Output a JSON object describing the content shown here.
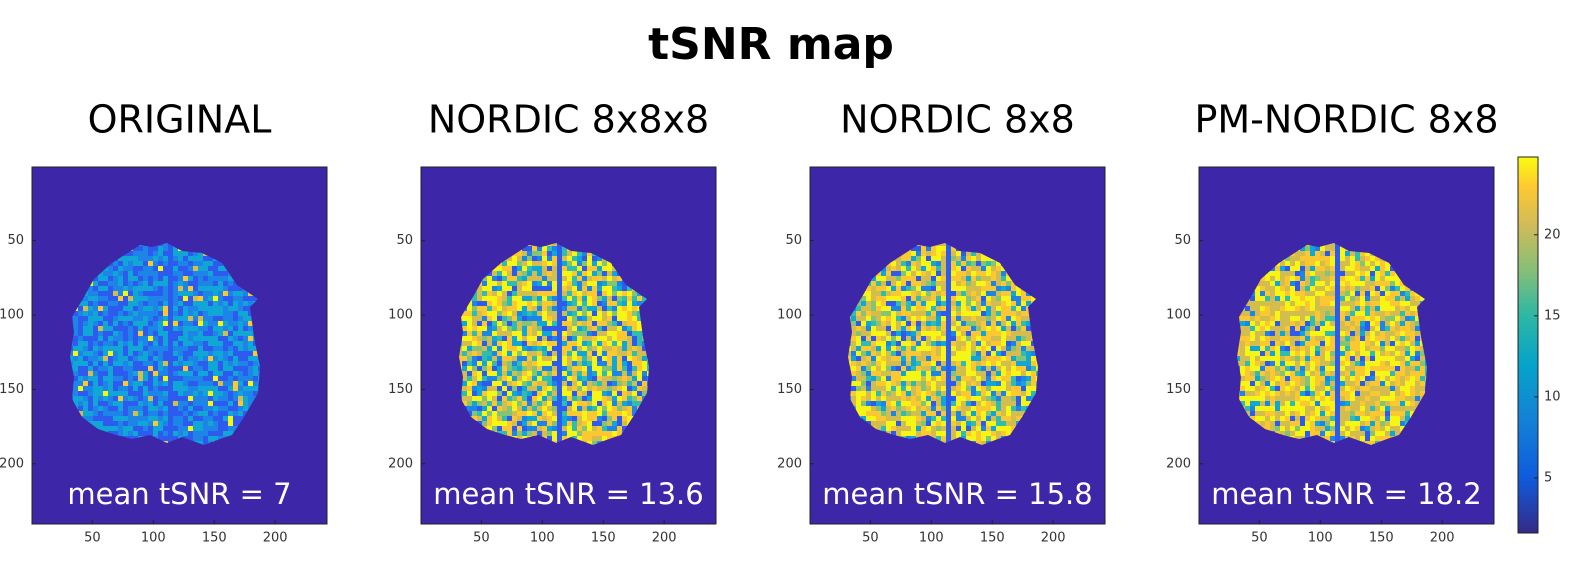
{
  "title": "tSNR map",
  "chart_data": [
    {
      "type": "image",
      "title": "ORIGINAL",
      "annotation": "mean tSNR = 7",
      "xlim": [
        0.5,
        242.5
      ],
      "ylim": [
        0.5,
        240.5
      ],
      "xticks": [
        50,
        100,
        150,
        200
      ],
      "yticks": [
        50,
        100,
        150,
        200
      ]
    },
    {
      "type": "image",
      "title": "NORDIC 8x8x8",
      "annotation": "mean tSNR = 13.6",
      "xlim": [
        0.5,
        242.5
      ],
      "ylim": [
        0.5,
        240.5
      ],
      "xticks": [
        50,
        100,
        150,
        200
      ],
      "yticks": [
        50,
        100,
        150,
        200
      ]
    },
    {
      "type": "image",
      "title": "NORDIC 8x8",
      "annotation": "mean tSNR = 15.8",
      "xlim": [
        0.5,
        242.5
      ],
      "ylim": [
        0.5,
        240.5
      ],
      "xticks": [
        50,
        100,
        150,
        200
      ],
      "yticks": [
        50,
        100,
        150,
        200
      ]
    },
    {
      "type": "image",
      "title": "PM-NORDIC 8x8",
      "annotation": "mean tSNR = 18.2",
      "xlim": [
        0.5,
        242.5
      ],
      "ylim": [
        0.5,
        240.5
      ],
      "xticks": [
        50,
        100,
        150,
        200
      ],
      "yticks": [
        50,
        100,
        150,
        200
      ]
    }
  ],
  "colorbar": {
    "clim": [
      1.6,
      24.8
    ],
    "ticks": [
      5,
      10,
      15,
      20
    ]
  }
}
